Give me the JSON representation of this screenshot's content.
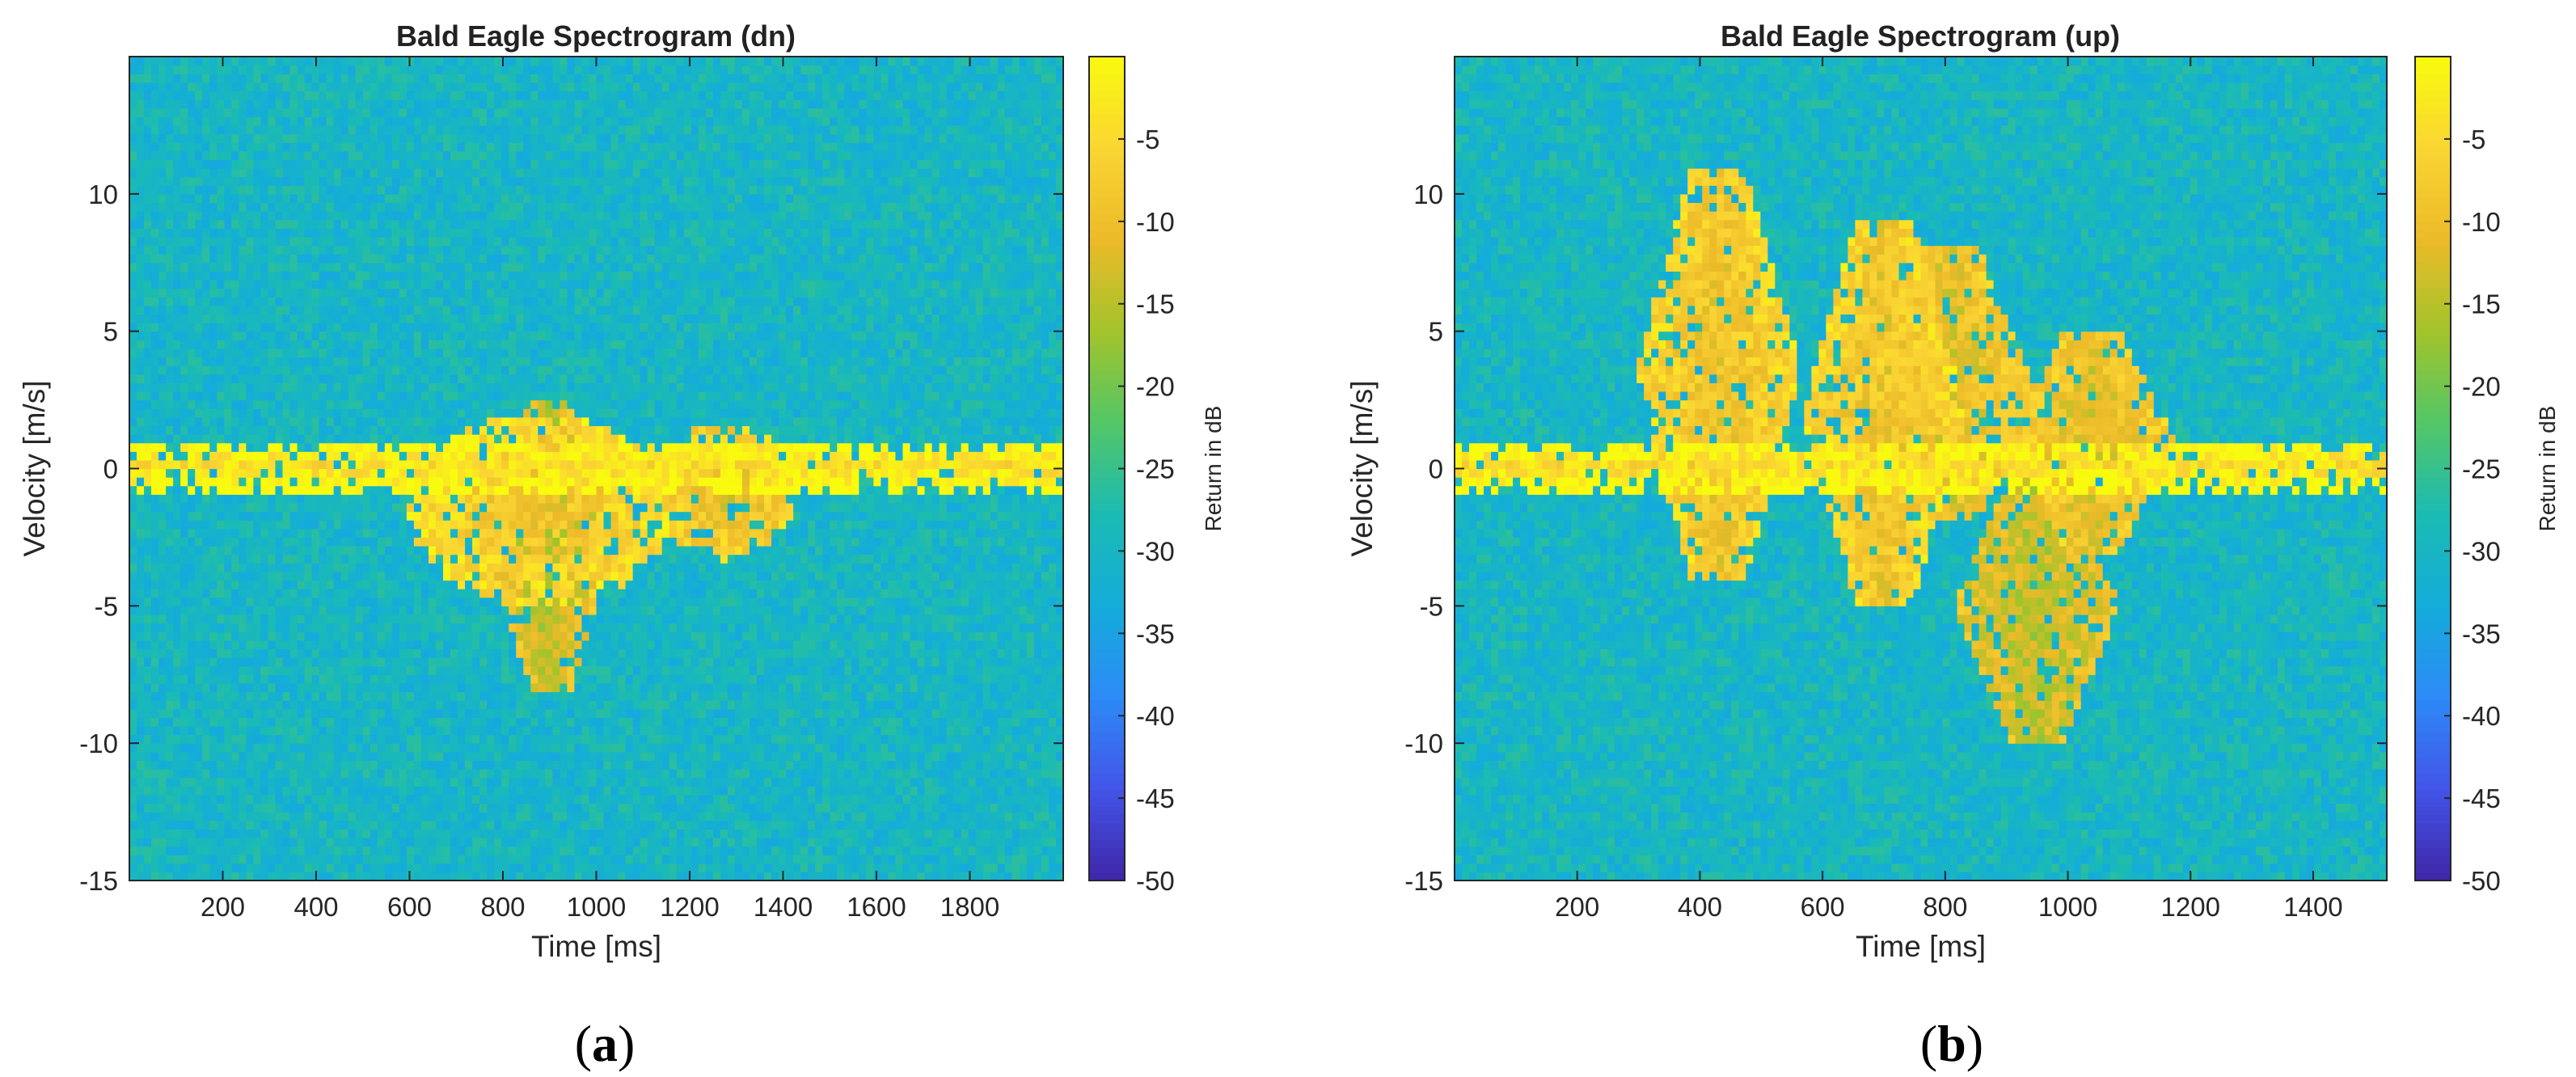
{
  "chart_data": [
    {
      "type": "heatmap",
      "title": "Bald Eagle Spectrogram (dn)",
      "xlabel": "Time [ms]",
      "ylabel": "Velocity [m/s]",
      "xlim": [
        0,
        2000
      ],
      "ylim": [
        -15,
        15
      ],
      "x_ticks": [
        200,
        400,
        600,
        800,
        1000,
        1200,
        1400,
        1600,
        1800
      ],
      "y_ticks": [
        -15,
        -10,
        -5,
        0,
        5,
        10
      ],
      "colorbar": {
        "label": "Return in dB",
        "range": [
          -50,
          0
        ],
        "ticks": [
          -50,
          -45,
          -40,
          -35,
          -30,
          -25,
          -20,
          -15,
          -10,
          -5
        ],
        "colormap": [
          "#3e26a8",
          "#4354e8",
          "#2d8af7",
          "#14acda",
          "#1bbbb4",
          "#53c667",
          "#a2c42b",
          "#ecba29",
          "#fad533",
          "#f9fb0e"
        ]
      },
      "background_level_db": -30,
      "features": [
        {
          "t_start_ms": 0,
          "t_end_ms": 2000,
          "v_center_ms": 0.1,
          "v_halfwidth_ms": 0.6,
          "level_db": -5
        },
        {
          "t_center_ms": 880,
          "t_halfwidth_ms": 280,
          "v_center_ms": -1.5,
          "v_halfwidth_ms": 3.5,
          "level_db": -10
        },
        {
          "t_center_ms": 900,
          "v_min_ms": -8,
          "v_max_ms": 2.5,
          "level_db": -15
        },
        {
          "t_center_ms": 1280,
          "t_halfwidth_ms": 150,
          "v_center_ms": -0.8,
          "v_halfwidth_ms": 2.5,
          "level_db": -12
        }
      ]
    },
    {
      "type": "heatmap",
      "title": "Bald Eagle Spectrogram (up)",
      "xlabel": "Time [ms]",
      "ylabel": "Velocity [m/s]",
      "xlim": [
        0,
        1520
      ],
      "ylim": [
        -15,
        15
      ],
      "x_ticks": [
        200,
        400,
        600,
        800,
        1000,
        1200,
        1400
      ],
      "y_ticks": [
        -15,
        -10,
        -5,
        0,
        5,
        10
      ],
      "colorbar": {
        "label": "Return in dB",
        "range": [
          -50,
          0
        ],
        "ticks": [
          -50,
          -45,
          -40,
          -35,
          -30,
          -25,
          -20,
          -15,
          -10,
          -5
        ],
        "colormap": [
          "#3e26a8",
          "#4354e8",
          "#2d8af7",
          "#14acda",
          "#1bbbb4",
          "#53c667",
          "#a2c42b",
          "#ecba29",
          "#fad533",
          "#f9fb0e"
        ]
      },
      "background_level_db": -30,
      "features": [
        {
          "t_start_ms": 0,
          "t_end_ms": 1520,
          "v_center_ms": 0.1,
          "v_halfwidth_ms": 0.6,
          "level_db": -5
        },
        {
          "t_center_ms": 430,
          "v_min_ms": -4,
          "v_max_ms": 11,
          "level_db": -10
        },
        {
          "t_center_ms": 700,
          "v_min_ms": -5,
          "v_max_ms": 9,
          "level_db": -10
        },
        {
          "t_center_ms": 810,
          "v_min_ms": -2,
          "v_max_ms": 8,
          "level_db": -12
        },
        {
          "t_center_ms": 950,
          "v_min_ms": -10,
          "v_max_ms": 0,
          "level_db": -15
        },
        {
          "t_center_ms": 1040,
          "v_min_ms": -3,
          "v_max_ms": 5,
          "level_db": -12
        }
      ]
    }
  ],
  "captions": [
    {
      "open": "(",
      "letter": "a",
      "close": ")"
    },
    {
      "open": "(",
      "letter": "b",
      "close": ")"
    }
  ]
}
